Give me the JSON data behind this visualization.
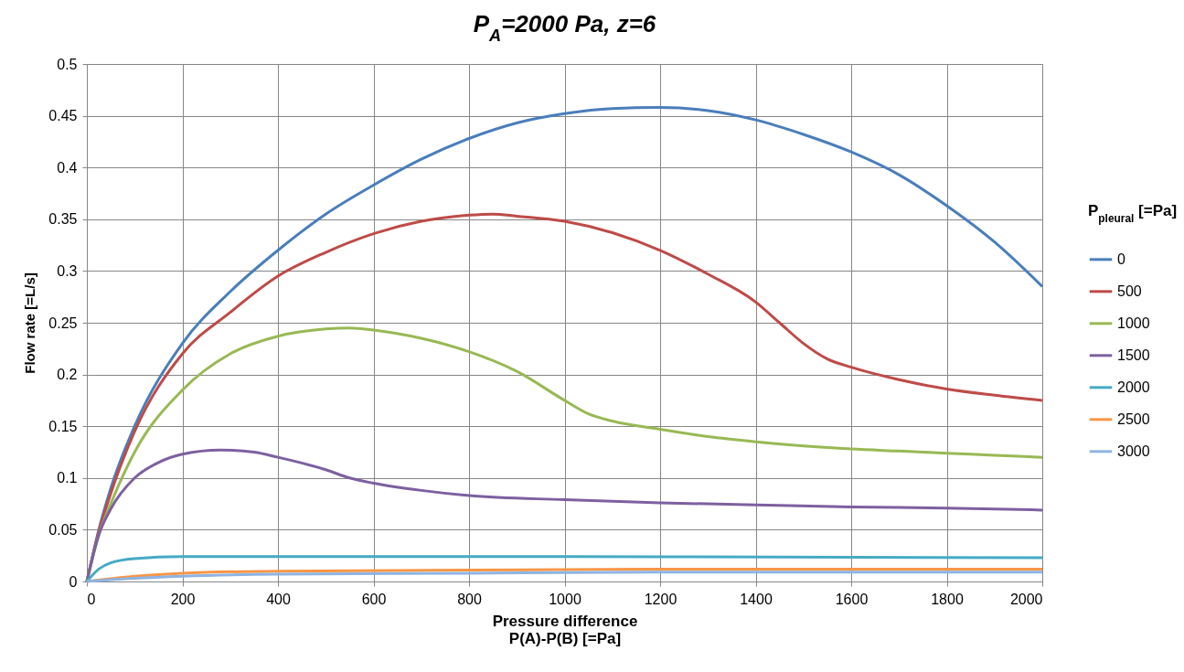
{
  "chart_data": {
    "type": "line",
    "title": "P$_{A}$=2000 Pa,  z=6",
    "xlabel": "Pressure difference\nP(A)-P(B) [=Pa]",
    "ylabel": "Flow rate [=L/s]",
    "legend_title": "P$_{pleural}$ [=Pa]",
    "xlim": [
      0,
      2000
    ],
    "xticks": [
      0,
      200,
      400,
      600,
      800,
      1000,
      1200,
      1400,
      1600,
      1800,
      2000
    ],
    "ylim": [
      0,
      0.5
    ],
    "yticks": [
      0,
      0.05,
      0.1,
      0.15,
      0.2,
      0.25,
      0.3,
      0.35,
      0.4,
      0.45,
      0.5
    ],
    "grid": true,
    "legend": "right",
    "marker": "none",
    "line_style": "solid",
    "series": [
      {
        "name": "0",
        "color": "#4a7ebb",
        "x": [
          0,
          25,
          50,
          100,
          200,
          300,
          400,
          500,
          600,
          700,
          800,
          900,
          1000,
          1100,
          1200,
          1300,
          1400,
          1500,
          1600,
          1700,
          1800,
          1900,
          2000
        ],
        "values": [
          0,
          0.05,
          0.09,
          0.15,
          0.23,
          0.28,
          0.32,
          0.355,
          0.383,
          0.408,
          0.428,
          0.443,
          0.452,
          0.457,
          0.458,
          0.455,
          0.446,
          0.432,
          0.415,
          0.393,
          0.363,
          0.328,
          0.285
        ]
      },
      {
        "name": "500",
        "color": "#be4b48",
        "x": [
          0,
          25,
          50,
          100,
          200,
          300,
          400,
          500,
          600,
          700,
          800,
          850,
          900,
          1000,
          1100,
          1200,
          1300,
          1400,
          1450,
          1500,
          1550,
          1600,
          1700,
          1800,
          1900,
          2000
        ],
        "values": [
          0,
          0.048,
          0.085,
          0.145,
          0.22,
          0.26,
          0.295,
          0.318,
          0.336,
          0.348,
          0.354,
          0.355,
          0.353,
          0.348,
          0.337,
          0.32,
          0.297,
          0.27,
          0.25,
          0.23,
          0.215,
          0.207,
          0.195,
          0.186,
          0.18,
          0.175
        ]
      },
      {
        "name": "1000",
        "color": "#98b954",
        "x": [
          0,
          25,
          50,
          100,
          200,
          300,
          400,
          500,
          550,
          600,
          700,
          800,
          900,
          1000,
          1050,
          1100,
          1200,
          1300,
          1400,
          1500,
          1600,
          1700,
          1800,
          1900,
          2000
        ],
        "values": [
          0,
          0.045,
          0.075,
          0.125,
          0.185,
          0.22,
          0.237,
          0.244,
          0.245,
          0.243,
          0.235,
          0.222,
          0.203,
          0.175,
          0.162,
          0.155,
          0.147,
          0.14,
          0.135,
          0.131,
          0.128,
          0.126,
          0.124,
          0.122,
          0.12
        ]
      },
      {
        "name": "1500",
        "color": "#7d60a0",
        "x": [
          0,
          25,
          50,
          100,
          150,
          200,
          280,
          350,
          400,
          500,
          550,
          600,
          700,
          800,
          1000,
          1200,
          1400,
          1600,
          1800,
          2000
        ],
        "values": [
          0,
          0.045,
          0.07,
          0.1,
          0.115,
          0.123,
          0.127,
          0.125,
          0.12,
          0.108,
          0.1,
          0.095,
          0.088,
          0.083,
          0.079,
          0.076,
          0.074,
          0.072,
          0.071,
          0.069
        ]
      },
      {
        "name": "2000",
        "color": "#46aac5",
        "x": [
          0,
          25,
          50,
          100,
          200,
          600,
          1000,
          2000
        ],
        "values": [
          0,
          0.012,
          0.018,
          0.022,
          0.024,
          0.024,
          0.024,
          0.023
        ]
      },
      {
        "name": "2500",
        "color": "#f79646",
        "x": [
          0,
          100,
          200,
          400,
          800,
          1200,
          2000
        ],
        "values": [
          0,
          0.005,
          0.008,
          0.01,
          0.011,
          0.012,
          0.012
        ]
      },
      {
        "name": "3000",
        "color": "#8eb4e3",
        "x": [
          0,
          100,
          200,
          400,
          800,
          1200,
          2000
        ],
        "values": [
          0,
          0.003,
          0.005,
          0.007,
          0.008,
          0.009,
          0.009
        ]
      }
    ]
  }
}
